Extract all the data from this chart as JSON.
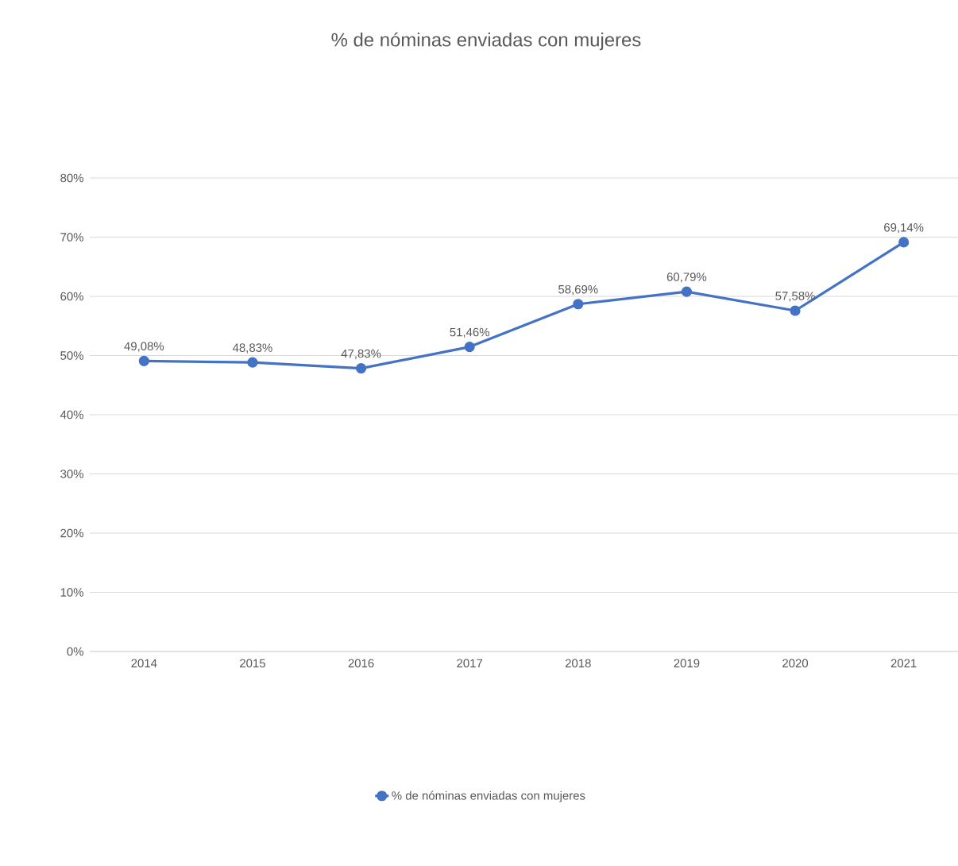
{
  "chart_data": {
    "type": "line",
    "title": "% de nóminas enviadas con mujeres",
    "categories": [
      "2014",
      "2015",
      "2016",
      "2017",
      "2018",
      "2019",
      "2020",
      "2021"
    ],
    "series": [
      {
        "name": "% de nóminas enviadas con mujeres",
        "color": "#4472c4",
        "values": [
          49.08,
          48.83,
          47.83,
          51.46,
          58.69,
          60.79,
          57.58,
          69.14
        ],
        "value_labels": [
          "49,08%",
          "48,83%",
          "47,83%",
          "51,46%",
          "58,69%",
          "60,79%",
          "57,58%",
          "69,14%"
        ]
      }
    ],
    "ylim": [
      0,
      80
    ],
    "yticks": [
      {
        "value": 0,
        "label": "0%"
      },
      {
        "value": 10,
        "label": "10%"
      },
      {
        "value": 20,
        "label": "20%"
      },
      {
        "value": 30,
        "label": "30%"
      },
      {
        "value": 40,
        "label": "40%"
      },
      {
        "value": 50,
        "label": "50%"
      },
      {
        "value": 60,
        "label": "60%"
      },
      {
        "value": 70,
        "label": "70%"
      },
      {
        "value": 80,
        "label": "80%"
      }
    ],
    "grid": "y",
    "legend": "bottom",
    "marker": "circle",
    "line_style": "solid"
  }
}
